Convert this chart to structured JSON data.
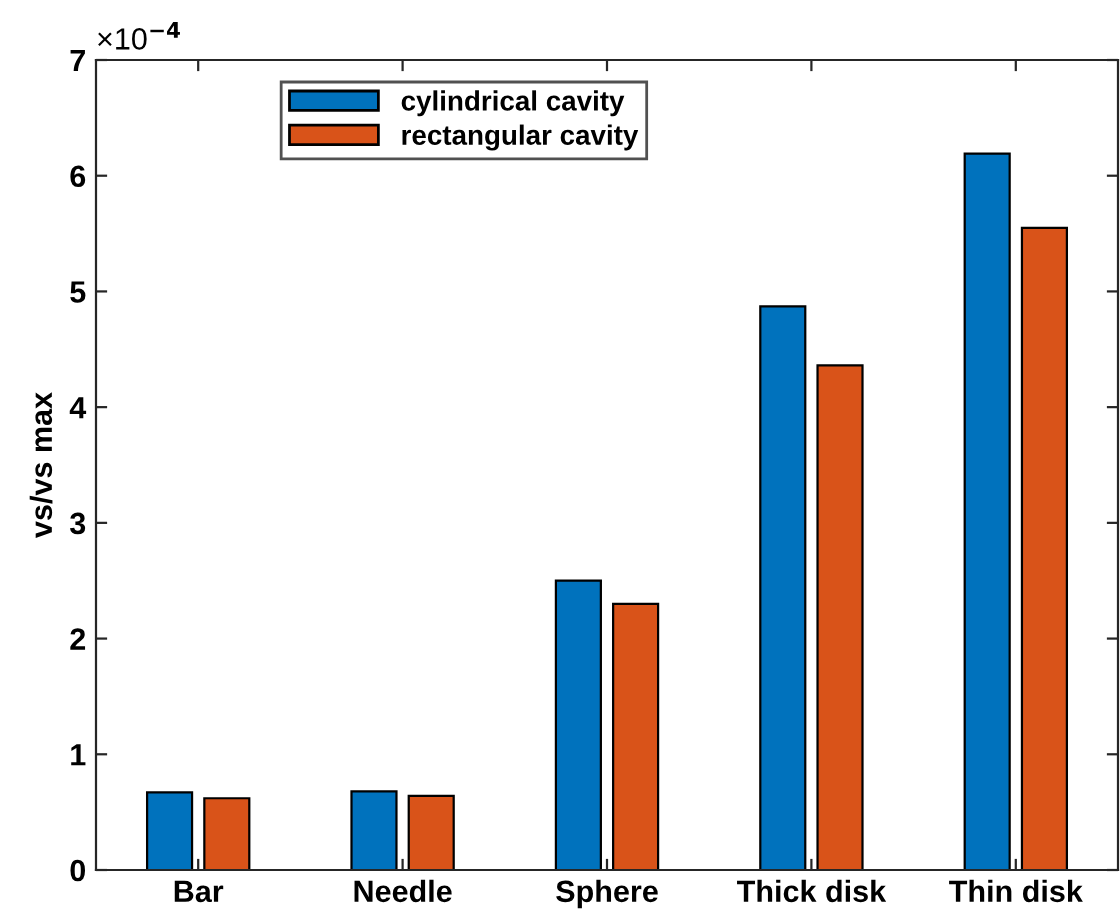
{
  "chart_data": {
    "type": "bar",
    "ylabel": "vs/vs max",
    "categories": [
      "Bar",
      "Needle",
      "Sphere",
      "Thick disk",
      "Thin disk"
    ],
    "series": [
      {
        "name": "cylindrical cavity",
        "color": "#0072bd",
        "values": [
          0.67,
          0.68,
          2.5,
          4.87,
          6.19
        ]
      },
      {
        "name": "rectangular cavity",
        "color": "#d95319",
        "values": [
          0.62,
          0.64,
          2.3,
          4.36,
          5.55
        ]
      }
    ],
    "ylim": [
      0,
      7
    ],
    "yticks": [
      0,
      1,
      2,
      3,
      4,
      5,
      6,
      7
    ],
    "annotations": [
      "×10$^{−4}$"
    ],
    "grid": false,
    "legend": "top"
  }
}
